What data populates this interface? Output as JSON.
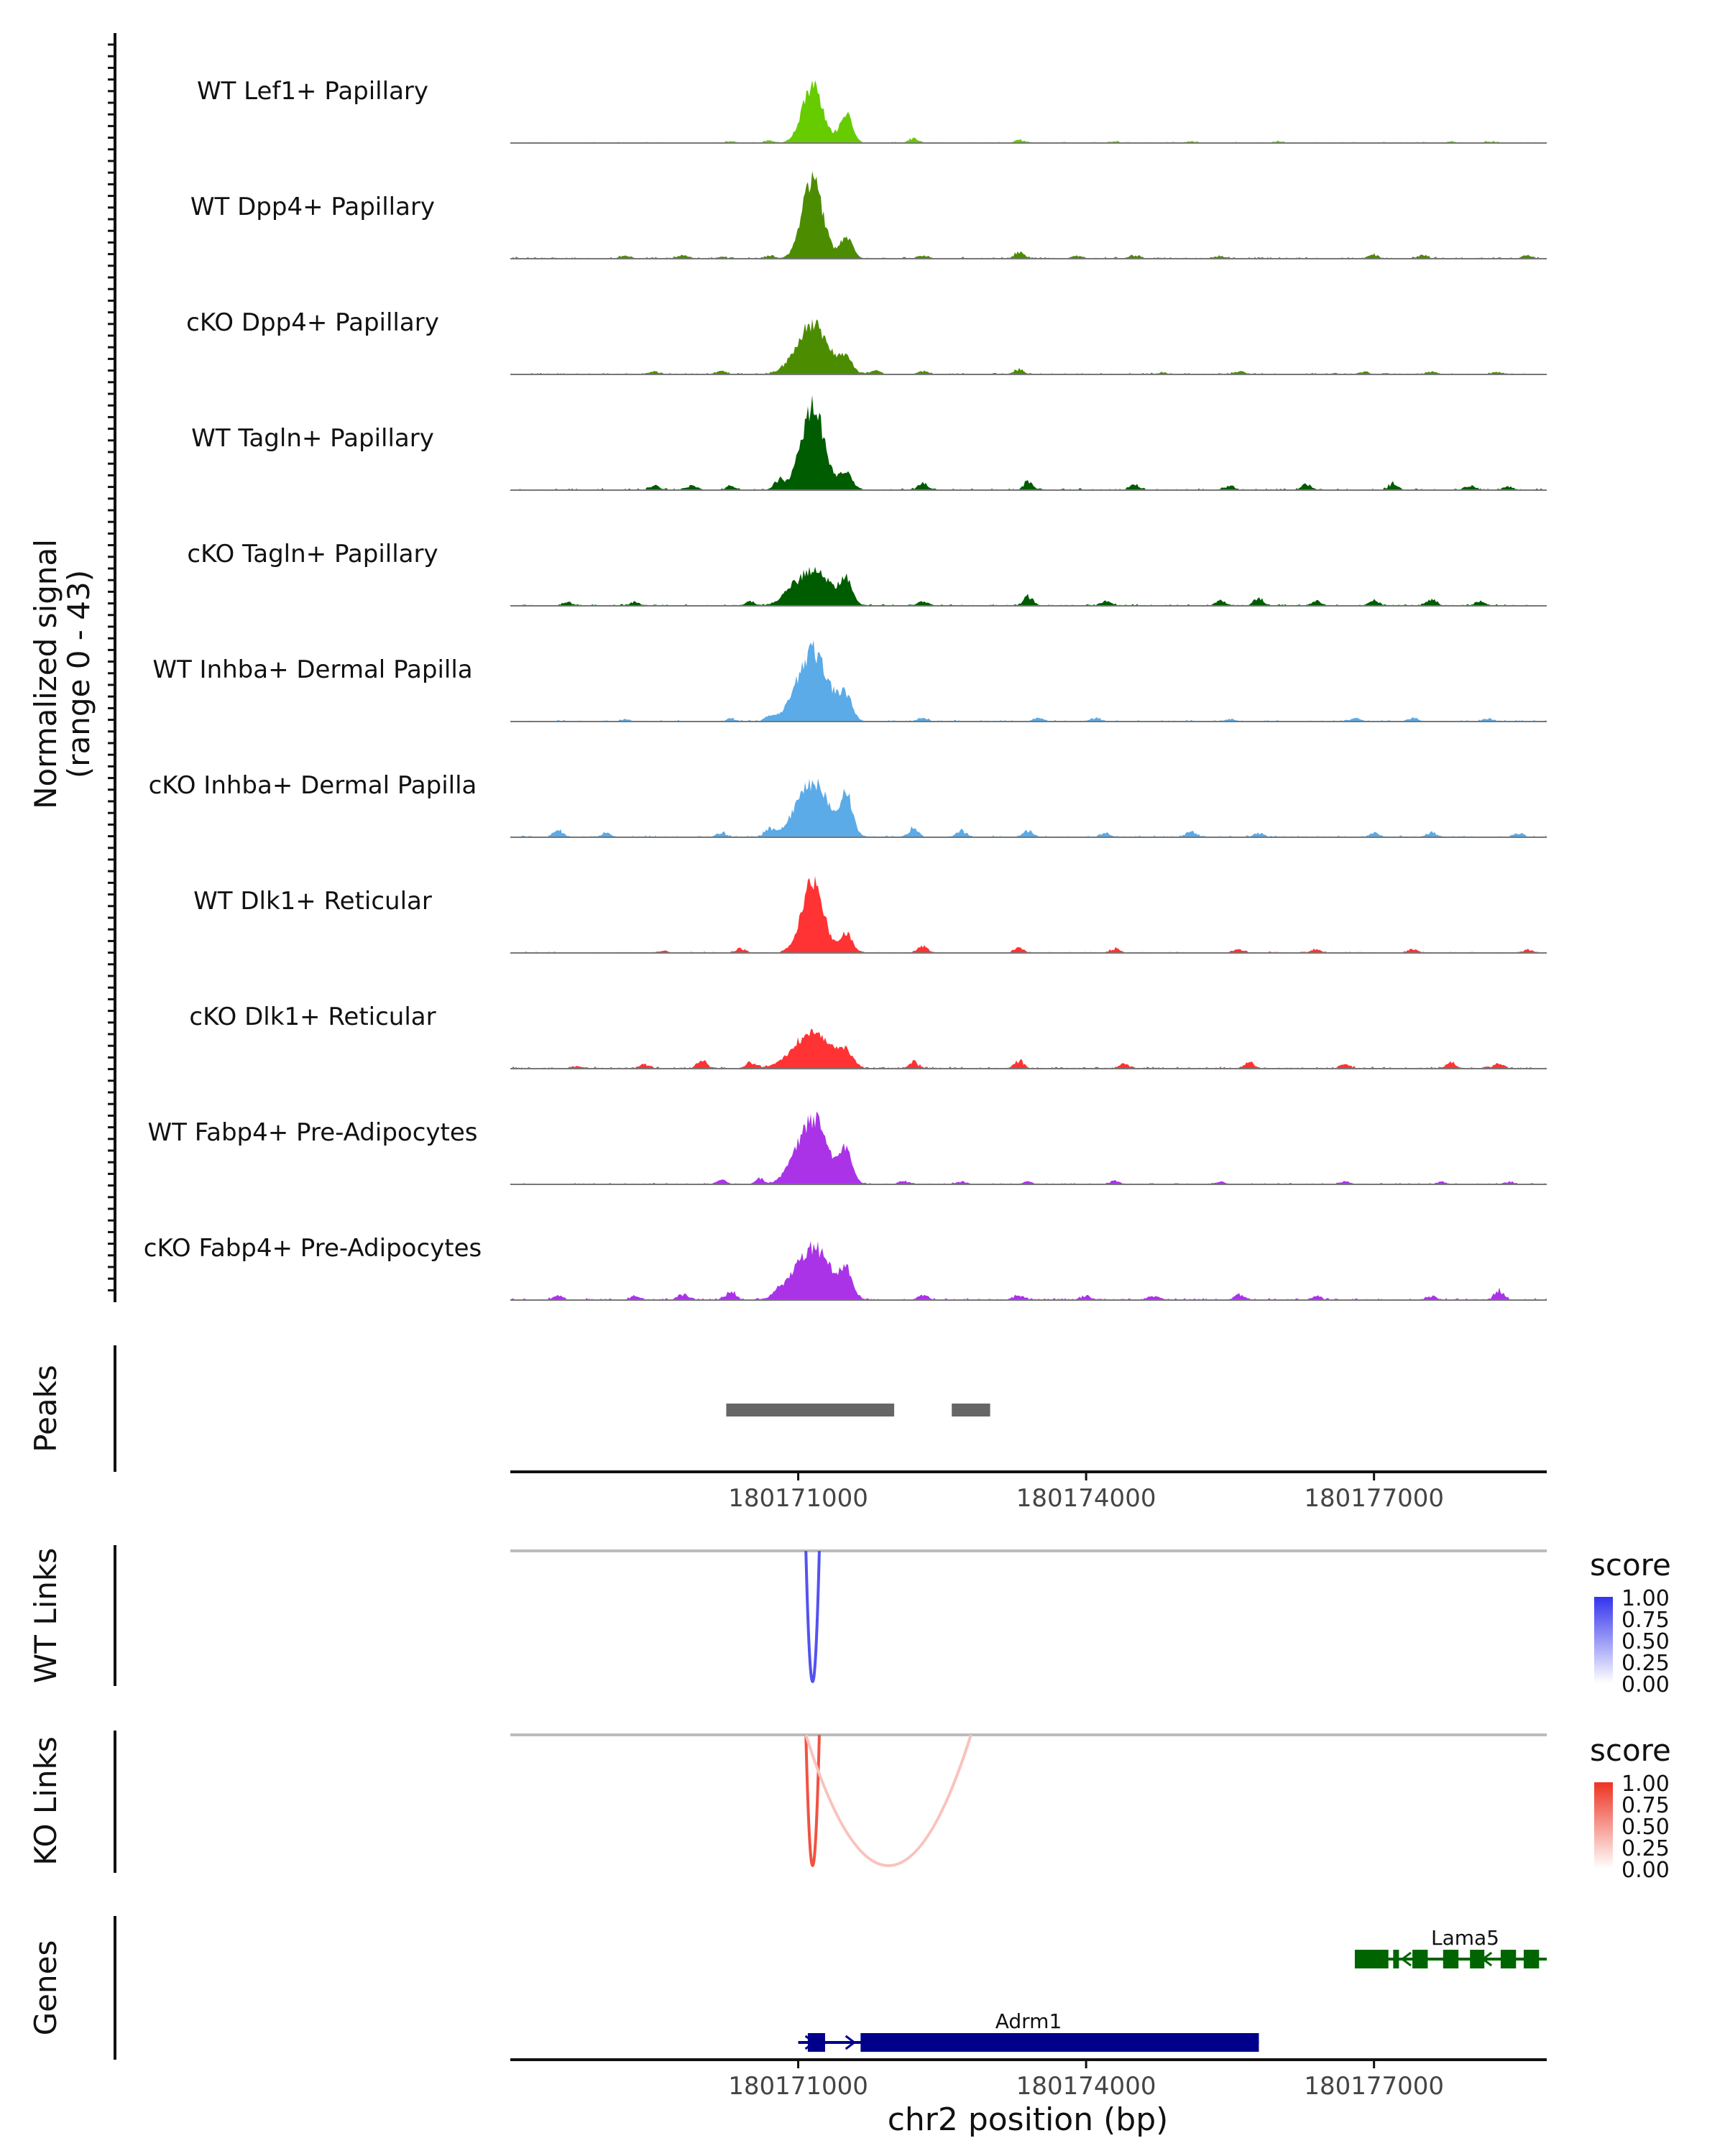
{
  "chart_data": {
    "type": "area",
    "title": "",
    "region": {
      "chromosome": "chr2",
      "xlim": [
        180168000,
        180178800
      ]
    },
    "coverage": {
      "ylabel_line1": "Normalized signal",
      "ylabel_line2": "(range 0 - 43)",
      "ylim": [
        0,
        43
      ],
      "peak_centers": [
        180171150,
        180171500
      ],
      "series": [
        {
          "name": "WT Lef1+ Papillary",
          "color": "#66CC00",
          "peak_value": 26,
          "second_peak": 14,
          "spread": 150,
          "noise": 1.0,
          "bumps": [
            [
              180170300,
              0.8
            ],
            [
              180170700,
              1.0
            ],
            [
              180172200,
              2.0
            ],
            [
              180173300,
              1.6
            ],
            [
              180174300,
              0.8
            ],
            [
              180175100,
              0.7
            ],
            [
              180176000,
              0.7
            ],
            [
              180177800,
              0.8
            ],
            [
              180178200,
              0.6
            ]
          ]
        },
        {
          "name": "WT Dpp4+ Papillary",
          "color": "#4C8C00",
          "peak_value": 36,
          "second_peak": 10,
          "spread": 150,
          "noise": 1.4,
          "bumps": [
            [
              180169200,
              1.2
            ],
            [
              180169800,
              1.6
            ],
            [
              180170200,
              1.0
            ],
            [
              180170700,
              1.4
            ],
            [
              180172300,
              1.6
            ],
            [
              180173300,
              3.2
            ],
            [
              180173900,
              1.4
            ],
            [
              180174500,
              1.6
            ],
            [
              180175400,
              1.4
            ],
            [
              180177000,
              1.8
            ],
            [
              180177500,
              1.8
            ],
            [
              180178600,
              1.6
            ]
          ]
        },
        {
          "name": "cKO Dpp4+ Papillary",
          "color": "#4C8C00",
          "peak_value": 23,
          "second_peak": 7,
          "spread": 230,
          "noise": 1.2,
          "bumps": [
            [
              180169500,
              1.4
            ],
            [
              180170200,
              1.6
            ],
            [
              180171800,
              2.0
            ],
            [
              180172300,
              1.8
            ],
            [
              180173300,
              2.6
            ],
            [
              180174800,
              1.0
            ],
            [
              180175600,
              1.4
            ],
            [
              180176900,
              1.2
            ],
            [
              180177600,
              1.4
            ],
            [
              180178300,
              1.2
            ]
          ]
        },
        {
          "name": "WT Tagln+ Papillary",
          "color": "#005C00",
          "peak_value": 38,
          "second_peak": 8,
          "spread": 170,
          "noise": 1.4,
          "bumps": [
            [
              180169500,
              2.2
            ],
            [
              180169900,
              2.4
            ],
            [
              180170300,
              1.8
            ],
            [
              180170800,
              5.0
            ],
            [
              180172300,
              3.4
            ],
            [
              180173400,
              4.0
            ],
            [
              180174500,
              2.4
            ],
            [
              180175500,
              2.0
            ],
            [
              180176300,
              2.8
            ],
            [
              180177200,
              3.0
            ],
            [
              180178000,
              2.2
            ],
            [
              180178400,
              1.8
            ]
          ]
        },
        {
          "name": "cKO Tagln+ Papillary",
          "color": "#005C00",
          "peak_value": 16,
          "second_peak": 10,
          "spread": 260,
          "noise": 1.3,
          "bumps": [
            [
              180168600,
              1.6
            ],
            [
              180169300,
              1.6
            ],
            [
              180170500,
              1.8
            ],
            [
              180170900,
              3.2
            ],
            [
              180172300,
              2.4
            ],
            [
              180173400,
              5.0
            ],
            [
              180174200,
              2.4
            ],
            [
              180175400,
              2.4
            ],
            [
              180175800,
              4.0
            ],
            [
              180176400,
              2.4
            ],
            [
              180177000,
              3.0
            ],
            [
              180177600,
              3.4
            ],
            [
              180178100,
              2.2
            ]
          ]
        },
        {
          "name": "WT Inhba+ Dermal Papilla",
          "color": "#5AABE8",
          "peak_value": 32,
          "second_peak": 10,
          "spread": 230,
          "noise": 1.2,
          "bumps": [
            [
              180169200,
              1.0
            ],
            [
              180170300,
              1.2
            ],
            [
              180170700,
              1.8
            ],
            [
              180172300,
              1.8
            ],
            [
              180173500,
              1.8
            ],
            [
              180174100,
              1.6
            ],
            [
              180175500,
              1.2
            ],
            [
              180176800,
              1.6
            ],
            [
              180177400,
              1.6
            ],
            [
              180178200,
              1.4
            ]
          ]
        },
        {
          "name": "cKO Inhba+ Dermal Papilla",
          "color": "#5AABE8",
          "peak_value": 25,
          "second_peak": 18,
          "spread": 240,
          "noise": 1.3,
          "bumps": [
            [
              180168500,
              3.6
            ],
            [
              180169000,
              2.0
            ],
            [
              180170200,
              2.4
            ],
            [
              180170700,
              3.6
            ],
            [
              180172200,
              4.6
            ],
            [
              180172700,
              3.4
            ],
            [
              180173400,
              3.4
            ],
            [
              180174200,
              2.2
            ],
            [
              180175100,
              2.8
            ],
            [
              180175800,
              2.0
            ],
            [
              180177000,
              2.0
            ],
            [
              180177600,
              2.4
            ],
            [
              180178500,
              1.8
            ]
          ]
        },
        {
          "name": "WT Dlk1+ Reticular",
          "color": "#FF3333",
          "peak_value": 32,
          "second_peak": 9,
          "spread": 160,
          "noise": 1.0,
          "bumps": [
            [
              180169600,
              1.0
            ],
            [
              180170400,
              2.2
            ],
            [
              180172300,
              3.6
            ],
            [
              180173300,
              2.4
            ],
            [
              180174300,
              2.0
            ],
            [
              180175600,
              1.8
            ],
            [
              180176400,
              1.8
            ],
            [
              180177400,
              1.8
            ],
            [
              180178600,
              1.6
            ]
          ]
        },
        {
          "name": "cKO Dlk1+ Reticular",
          "color": "#FF3333",
          "peak_value": 16,
          "second_peak": 6,
          "spread": 280,
          "noise": 1.6,
          "bumps": [
            [
              180168700,
              1.2
            ],
            [
              180169400,
              2.2
            ],
            [
              180170000,
              4.0
            ],
            [
              180170500,
              3.0
            ],
            [
              180172200,
              3.4
            ],
            [
              180173300,
              4.0
            ],
            [
              180174400,
              2.4
            ],
            [
              180175700,
              3.0
            ],
            [
              180176700,
              2.4
            ],
            [
              180177800,
              3.0
            ],
            [
              180178300,
              2.8
            ]
          ]
        },
        {
          "name": "WT Fabp4+ Pre-Adipocytes",
          "color": "#AA33E8",
          "peak_value": 30,
          "second_peak": 14,
          "spread": 220,
          "noise": 1.1,
          "bumps": [
            [
              180170200,
              2.0
            ],
            [
              180170600,
              2.4
            ],
            [
              180170900,
              2.8
            ],
            [
              180172100,
              1.6
            ],
            [
              180172700,
              1.4
            ],
            [
              180173400,
              1.4
            ],
            [
              180174300,
              1.8
            ],
            [
              180175400,
              1.2
            ],
            [
              180176700,
              1.4
            ],
            [
              180177700,
              1.2
            ],
            [
              180178400,
              1.2
            ]
          ]
        },
        {
          "name": "cKO Fabp4+ Pre-Adipocytes",
          "color": "#AA33E8",
          "peak_value": 24,
          "second_peak": 12,
          "spread": 260,
          "noise": 1.5,
          "bumps": [
            [
              180168500,
              2.0
            ],
            [
              180169300,
              1.8
            ],
            [
              180169800,
              3.0
            ],
            [
              180170300,
              3.8
            ],
            [
              180170800,
              2.6
            ],
            [
              180172300,
              2.8
            ],
            [
              180173300,
              2.6
            ],
            [
              180174000,
              2.2
            ],
            [
              180174700,
              2.4
            ],
            [
              180175600,
              2.6
            ],
            [
              180176400,
              2.0
            ],
            [
              180177600,
              2.0
            ],
            [
              180178300,
              4.6
            ]
          ]
        }
      ]
    },
    "peaks": {
      "label": "Peaks",
      "regions": [
        {
          "start": 180170250,
          "end": 180172000
        },
        {
          "start": 180172600,
          "end": 180173000
        }
      ],
      "color": "#666666"
    },
    "xaxis": {
      "ticks": [
        180171000,
        180174000,
        180177000
      ],
      "tick_labels": [
        "180171000",
        "180174000",
        "180177000"
      ],
      "xlabel": "chr2 position (bp)"
    },
    "links": [
      {
        "label": "WT Links",
        "legend_title": "score",
        "legend_ticks": [
          "1.00",
          "0.75",
          "0.50",
          "0.25",
          "0.00"
        ],
        "color_high": "#3333EE",
        "color_low": "#FFFFFF",
        "arcs": [
          {
            "start": 180171080,
            "end": 180171220,
            "score": 0.85,
            "depth": 1.0
          }
        ]
      },
      {
        "label": "KO Links",
        "legend_title": "score",
        "legend_ticks": [
          "1.00",
          "0.75",
          "0.50",
          "0.25",
          "0.00"
        ],
        "color_high": "#EE3322",
        "color_low": "#FFFFFF",
        "arcs": [
          {
            "start": 180171080,
            "end": 180171220,
            "score": 0.85,
            "depth": 1.0
          },
          {
            "start": 180171080,
            "end": 180172800,
            "score": 0.3,
            "depth": 1.0
          }
        ]
      }
    ],
    "genes": {
      "label": "Genes",
      "items": [
        {
          "name": "Lama5",
          "strand": "-",
          "start": 180176800,
          "end": 180179200,
          "color": "#006400",
          "exons": [
            [
              180176800,
              180177150
            ],
            [
              180177200,
              180177260
            ],
            [
              180177400,
              180177560
            ],
            [
              180177720,
              180177880
            ],
            [
              180178000,
              180178150
            ],
            [
              180178320,
              180178480
            ],
            [
              180178560,
              180178720
            ],
            [
              180178800,
              180178900
            ]
          ]
        },
        {
          "name": "Adrm1",
          "strand": "+",
          "start": 180171000,
          "end": 180175800,
          "color": "#00008B",
          "exons": [
            [
              180171100,
              180171280
            ],
            [
              180171650,
              180175800
            ]
          ]
        }
      ]
    }
  }
}
